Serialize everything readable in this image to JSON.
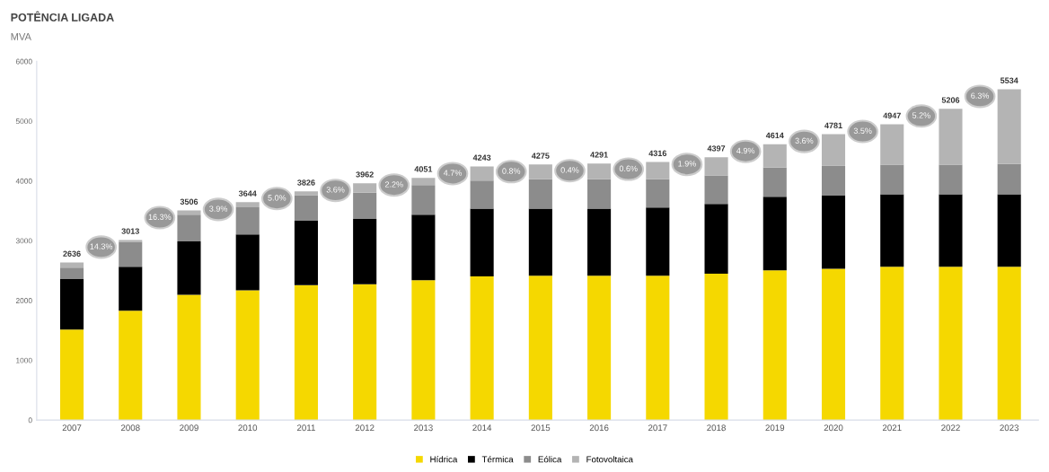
{
  "chart_data": {
    "type": "bar",
    "title": "POTÊNCIA LIGADA",
    "subtitle": "MVA",
    "stacked": true,
    "categories": [
      "2007",
      "2008",
      "2009",
      "2010",
      "2011",
      "2012",
      "2013",
      "2014",
      "2015",
      "2016",
      "2017",
      "2018",
      "2019",
      "2020",
      "2021",
      "2022",
      "2023"
    ],
    "series": [
      {
        "name": "Hídrica",
        "color": "#f5d800",
        "values": [
          1515,
          1828,
          2096,
          2172,
          2258,
          2273,
          2338,
          2404,
          2414,
          2414,
          2414,
          2449,
          2505,
          2530,
          2566,
          2566,
          2566
        ]
      },
      {
        "name": "Térmica",
        "color": "#000000",
        "values": [
          843,
          738,
          894,
          934,
          1075,
          1091,
          1096,
          1131,
          1121,
          1121,
          1142,
          1167,
          1232,
          1223,
          1212,
          1212,
          1212
        ]
      },
      {
        "name": "Eólica",
        "color": "#8c8c8c",
        "values": [
          193,
          414,
          444,
          455,
          430,
          439,
          495,
          470,
          495,
          495,
          474,
          475,
          485,
          505,
          495,
          495,
          505
        ]
      },
      {
        "name": "Fotovoltaica",
        "color": "#b4b4b4",
        "values": [
          85,
          33,
          72,
          83,
          63,
          159,
          122,
          238,
          245,
          261,
          286,
          306,
          392,
          523,
          674,
          933,
          1251
        ]
      }
    ],
    "totals": [
      "2636",
      "3013",
      "3506",
      "3644",
      "3826",
      "3962",
      "4051",
      "4243",
      "4275",
      "4291",
      "4316",
      "4397",
      "4614",
      "4781",
      "4947",
      "5206",
      "5534"
    ],
    "annotations": [
      "14.3%",
      "16.3%",
      "3.9%",
      "5.0%",
      "3.6%",
      "2.2%",
      "4.7%",
      "0.8%",
      "0.4%",
      "0.6%",
      "1.9%",
      "4.9%",
      "3.6%",
      "3.5%",
      "5.2%",
      "6.3%"
    ],
    "ylim": [
      0,
      6000
    ],
    "yticks": [
      0,
      1000,
      2000,
      3000,
      4000,
      5000,
      6000
    ],
    "grid": false,
    "legend": "bottom"
  }
}
